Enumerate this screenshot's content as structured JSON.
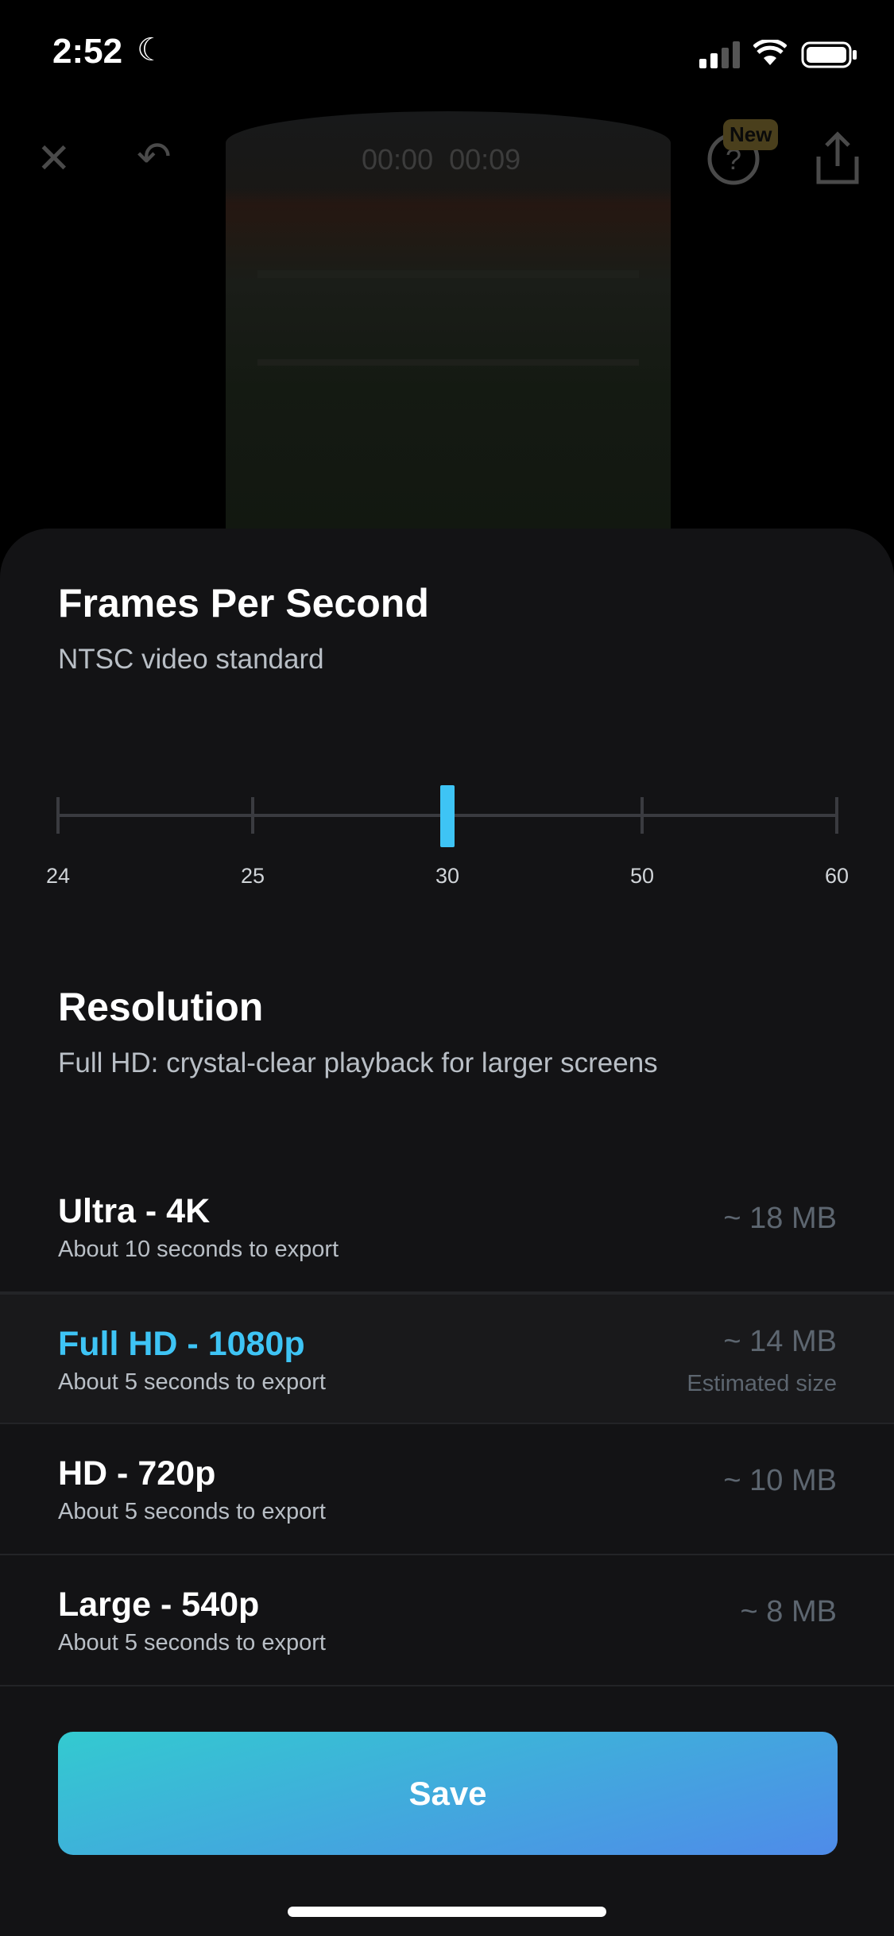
{
  "status_bar": {
    "time": "2:52"
  },
  "toolbar": {
    "timer_start": "00:00",
    "timer_end": "00:09",
    "new_badge": "New"
  },
  "fps": {
    "title": "Frames Per Second",
    "subtitle": "NTSC video standard",
    "options": [
      "24",
      "25",
      "30",
      "50",
      "60"
    ],
    "selected": "30"
  },
  "resolution": {
    "title": "Resolution",
    "subtitle": "Full HD: crystal-clear playback for larger screens",
    "items": [
      {
        "label": "Ultra - 4K",
        "time": "About 10 seconds to export",
        "size": "~ 18 MB"
      },
      {
        "label": "Full HD - 1080p",
        "time": "About 5 seconds to export",
        "size": "~ 14 MB",
        "note": "Estimated size",
        "selected": true
      },
      {
        "label": "HD - 720p",
        "time": "About 5 seconds to export",
        "size": "~ 10 MB"
      },
      {
        "label": "Large - 540p",
        "time": "About 5 seconds to export",
        "size": "~ 8 MB"
      }
    ]
  },
  "save_label": "Save",
  "colors": {
    "accent": "#3ec4f5",
    "sheet": "#131315",
    "save_gradient": [
      "#33cad0",
      "#4f8be9"
    ]
  }
}
